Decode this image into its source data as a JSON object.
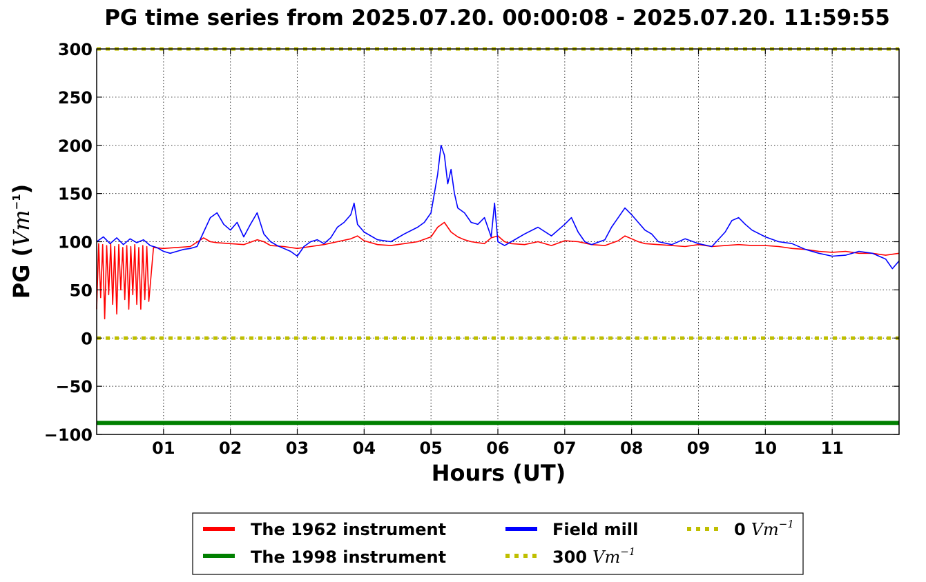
{
  "chart_data": {
    "type": "line",
    "title": "PG time series from 2025.07.20. 00:00:08 - 2025.07.20. 11:59:55",
    "xlabel": "Hours (UT)",
    "ylabel": {
      "prefix": "PG (",
      "unit": "Vm",
      "exp": "−1",
      "suffix": ")"
    },
    "xlim": [
      0,
      12
    ],
    "ylim": [
      -100,
      300
    ],
    "x_ticks": [
      {
        "v": 1,
        "label": "01"
      },
      {
        "v": 2,
        "label": "02"
      },
      {
        "v": 3,
        "label": "03"
      },
      {
        "v": 4,
        "label": "04"
      },
      {
        "v": 5,
        "label": "05"
      },
      {
        "v": 6,
        "label": "06"
      },
      {
        "v": 7,
        "label": "07"
      },
      {
        "v": 8,
        "label": "08"
      },
      {
        "v": 9,
        "label": "09"
      },
      {
        "v": 10,
        "label": "10"
      },
      {
        "v": 11,
        "label": "11"
      }
    ],
    "y_ticks": [
      {
        "v": 300,
        "label": "300"
      },
      {
        "v": 250,
        "label": "250"
      },
      {
        "v": 200,
        "label": "200"
      },
      {
        "v": 150,
        "label": "150"
      },
      {
        "v": 100,
        "label": "100"
      },
      {
        "v": 50,
        "label": "50"
      },
      {
        "v": 0,
        "label": "0"
      },
      {
        "v": -50,
        "label": "−50"
      },
      {
        "v": -100,
        "label": "−100"
      }
    ],
    "grid": true,
    "legend_position": "bottom-center",
    "series": [
      {
        "name": "The 1962 instrument",
        "color": "#ff0000",
        "style": "solid",
        "x": [
          0,
          0.03,
          0.06,
          0.09,
          0.12,
          0.15,
          0.18,
          0.21,
          0.24,
          0.27,
          0.3,
          0.33,
          0.36,
          0.39,
          0.42,
          0.45,
          0.48,
          0.51,
          0.54,
          0.57,
          0.6,
          0.63,
          0.66,
          0.69,
          0.72,
          0.75,
          0.78,
          0.85,
          1.0,
          1.2,
          1.4,
          1.6,
          1.7,
          1.8,
          2.0,
          2.2,
          2.4,
          2.5,
          2.6,
          2.8,
          3.0,
          3.2,
          3.4,
          3.6,
          3.8,
          3.9,
          4.0,
          4.2,
          4.4,
          4.6,
          4.8,
          5.0,
          5.1,
          5.2,
          5.3,
          5.4,
          5.5,
          5.6,
          5.8,
          5.9,
          6.0,
          6.1,
          6.2,
          6.4,
          6.6,
          6.8,
          7.0,
          7.2,
          7.4,
          7.6,
          7.8,
          7.9,
          8.0,
          8.1,
          8.2,
          8.4,
          8.6,
          8.8,
          9.0,
          9.2,
          9.4,
          9.6,
          9.8,
          10.0,
          10.2,
          10.4,
          10.6,
          10.8,
          11.0,
          11.2,
          11.4,
          11.6,
          11.8,
          12.0
        ],
        "y": [
          30,
          98,
          42,
          97,
          20,
          96,
          45,
          98,
          35,
          95,
          25,
          97,
          50,
          94,
          40,
          96,
          30,
          95,
          45,
          97,
          35,
          94,
          30,
          96,
          40,
          95,
          38,
          94,
          93,
          94,
          95,
          104,
          100,
          99,
          98,
          97,
          102,
          100,
          96,
          95,
          93,
          95,
          97,
          100,
          103,
          106,
          101,
          97,
          96,
          98,
          100,
          105,
          115,
          120,
          110,
          105,
          102,
          100,
          98,
          104,
          106,
          100,
          98,
          97,
          100,
          96,
          101,
          100,
          97,
          96,
          101,
          106,
          103,
          100,
          98,
          97,
          96,
          95,
          97,
          95,
          96,
          97,
          96,
          96,
          95,
          93,
          92,
          90,
          89,
          90,
          88,
          88,
          86,
          88
        ]
      },
      {
        "name": "The 1998 instrument",
        "color": "#008000",
        "style": "solid",
        "x": [
          0,
          12
        ],
        "y": [
          -88,
          -88
        ]
      },
      {
        "name": "Field mill",
        "color": "#0000ff",
        "style": "solid",
        "x": [
          0,
          0.1,
          0.2,
          0.3,
          0.4,
          0.5,
          0.6,
          0.7,
          0.8,
          0.9,
          1.0,
          1.1,
          1.2,
          1.3,
          1.4,
          1.5,
          1.6,
          1.7,
          1.8,
          1.9,
          2.0,
          2.1,
          2.2,
          2.3,
          2.4,
          2.5,
          2.6,
          2.7,
          2.8,
          2.9,
          3.0,
          3.1,
          3.2,
          3.3,
          3.4,
          3.5,
          3.6,
          3.7,
          3.8,
          3.85,
          3.9,
          4.0,
          4.2,
          4.4,
          4.6,
          4.8,
          4.9,
          5.0,
          5.1,
          5.15,
          5.2,
          5.25,
          5.3,
          5.35,
          5.4,
          5.5,
          5.6,
          5.7,
          5.8,
          5.9,
          5.95,
          6.0,
          6.1,
          6.2,
          6.4,
          6.6,
          6.8,
          7.0,
          7.1,
          7.2,
          7.3,
          7.4,
          7.6,
          7.7,
          7.8,
          7.9,
          8.0,
          8.1,
          8.2,
          8.3,
          8.4,
          8.6,
          8.8,
          9.0,
          9.2,
          9.4,
          9.5,
          9.6,
          9.7,
          9.8,
          10.0,
          10.2,
          10.4,
          10.6,
          10.8,
          11.0,
          11.2,
          11.4,
          11.6,
          11.7,
          11.8,
          11.9,
          12.0
        ],
        "y": [
          100,
          105,
          98,
          104,
          97,
          103,
          99,
          102,
          96,
          94,
          90,
          88,
          90,
          92,
          93,
          95,
          110,
          125,
          130,
          118,
          112,
          120,
          105,
          118,
          130,
          108,
          100,
          96,
          93,
          90,
          85,
          95,
          100,
          102,
          98,
          104,
          115,
          120,
          128,
          140,
          118,
          110,
          102,
          100,
          108,
          115,
          120,
          130,
          170,
          200,
          190,
          160,
          175,
          150,
          135,
          130,
          120,
          118,
          125,
          105,
          140,
          100,
          96,
          100,
          108,
          115,
          106,
          118,
          125,
          110,
          100,
          97,
          102,
          115,
          125,
          135,
          128,
          120,
          112,
          108,
          100,
          97,
          103,
          98,
          95,
          110,
          122,
          125,
          118,
          112,
          105,
          100,
          98,
          92,
          88,
          85,
          86,
          90,
          88,
          85,
          82,
          72,
          80
        ]
      },
      {
        "name": "300",
        "name_unit": "Vm",
        "name_exp": "−1",
        "color": "#bfbf00",
        "style": "dotted",
        "x": [
          0,
          12
        ],
        "y": [
          300,
          300
        ]
      },
      {
        "name": "0",
        "name_unit": "Vm",
        "name_exp": "−1",
        "color": "#bfbf00",
        "style": "dotted",
        "x": [
          0,
          12
        ],
        "y": [
          0,
          0
        ]
      }
    ]
  }
}
